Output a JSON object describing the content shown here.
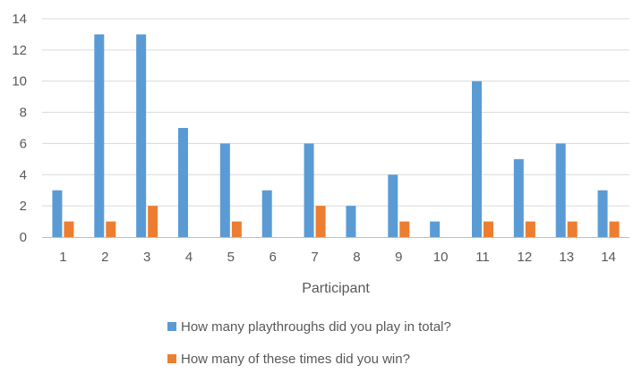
{
  "chart_data": {
    "type": "bar",
    "title": "",
    "xlabel": "Participant",
    "ylabel": "",
    "ylim": [
      0,
      14
    ],
    "yticks": [
      0,
      2,
      4,
      6,
      8,
      10,
      12,
      14
    ],
    "grid": true,
    "legend": "bottom",
    "categories": [
      "1",
      "2",
      "3",
      "4",
      "5",
      "6",
      "7",
      "8",
      "9",
      "10",
      "11",
      "12",
      "13",
      "14"
    ],
    "series": [
      {
        "name": "How many playthroughs did you play in total?",
        "color": "#5B9BD5",
        "values": [
          3,
          13,
          13,
          7,
          6,
          3,
          6,
          2,
          4,
          1,
          10,
          5,
          6,
          3
        ]
      },
      {
        "name": "How many of these times did you win?",
        "color": "#ED7D31",
        "values": [
          1,
          1,
          2,
          0,
          1,
          0,
          2,
          0,
          1,
          0,
          1,
          1,
          1,
          1
        ]
      }
    ]
  }
}
